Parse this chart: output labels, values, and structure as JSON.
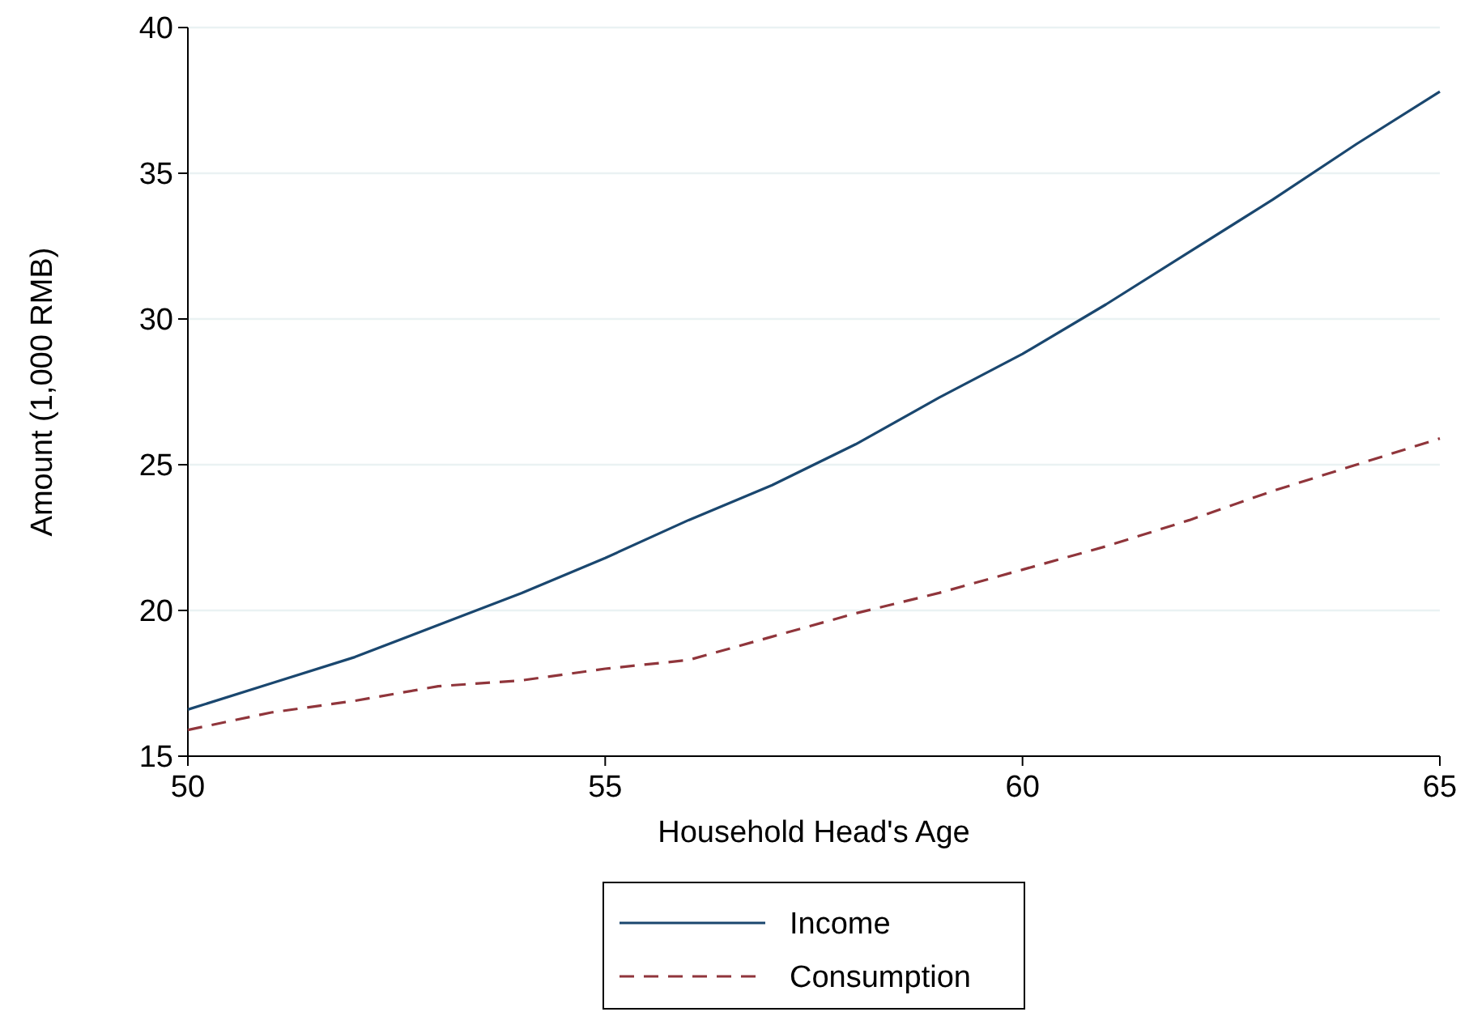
{
  "chart_data": {
    "type": "line",
    "xlabel": "Household Head's Age",
    "ylabel": "Amount (1,000 RMB)",
    "x": [
      50,
      51,
      52,
      53,
      54,
      55,
      56,
      57,
      58,
      59,
      60,
      61,
      62,
      63,
      64,
      65
    ],
    "series": [
      {
        "name": "Income",
        "color": "#1a476f",
        "line_style": "solid",
        "values": [
          16.6,
          17.5,
          18.4,
          19.5,
          20.6,
          21.8,
          23.1,
          24.3,
          25.7,
          27.3,
          28.8,
          30.5,
          32.3,
          34.1,
          36,
          37.8
        ]
      },
      {
        "name": "Consumption",
        "color": "#90353b",
        "line_style": "dashed",
        "values": [
          15.9,
          16.5,
          16.9,
          17.4,
          17.6,
          18,
          18.3,
          19.1,
          19.9,
          20.6,
          21.4,
          22.2,
          23.1,
          24.1,
          25,
          25.9
        ]
      }
    ],
    "xlim": [
      50,
      65
    ],
    "xticks": [
      50,
      55,
      60,
      65
    ],
    "ylim": [
      15,
      40
    ],
    "yticks": [
      15,
      20,
      25,
      30,
      35,
      40
    ],
    "grid": "y",
    "legend": "bottom",
    "marker": "none"
  }
}
